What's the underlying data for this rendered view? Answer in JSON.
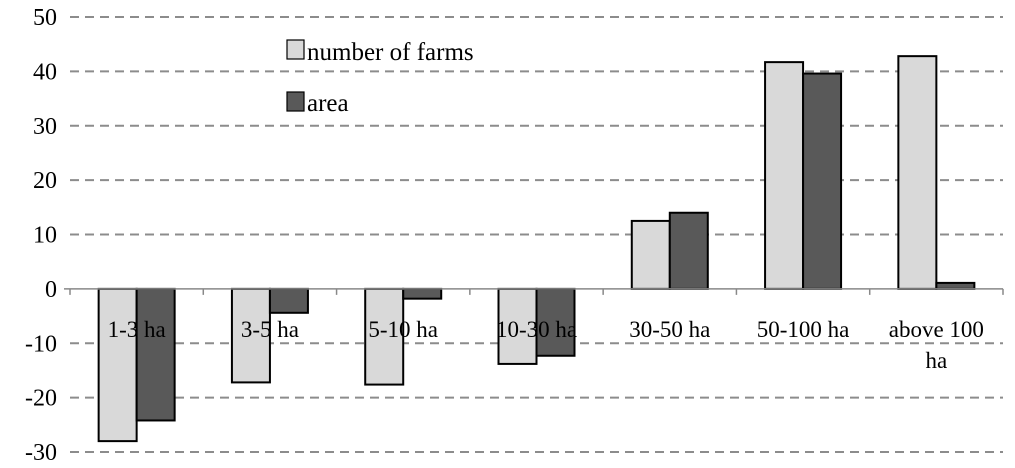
{
  "chart_data": {
    "type": "bar",
    "categories": [
      "1-3 ha",
      "3-5 ha",
      "5-10 ha",
      "10-30 ha",
      "30-50 ha",
      "50-100 ha",
      "above 100 ha"
    ],
    "series": [
      {
        "name": "number of farms",
        "color": "#d9d9d9",
        "values": [
          -28.0,
          -17.2,
          -17.6,
          -13.8,
          12.5,
          41.7,
          42.8
        ]
      },
      {
        "name": "area",
        "color": "#595959",
        "values": [
          -24.2,
          -4.4,
          -1.8,
          -12.3,
          14.0,
          39.6,
          1.1
        ]
      }
    ],
    "ylim": [
      -30,
      50
    ],
    "yticks": [
      50,
      40,
      30,
      20,
      10,
      0,
      -10,
      -20,
      -30
    ],
    "grid": true,
    "legend_position": "top-left inside plot"
  }
}
